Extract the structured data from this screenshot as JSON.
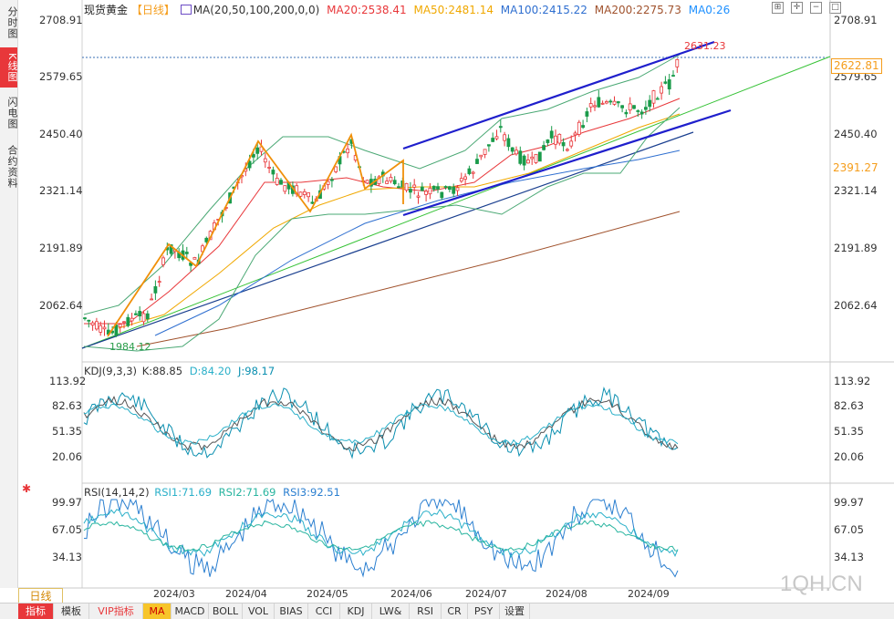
{
  "left_tabs": [
    {
      "label": "分时图",
      "active": false
    },
    {
      "label": "K线图",
      "active": true
    },
    {
      "label": "闪电图",
      "active": false
    },
    {
      "label": "合约资料",
      "active": false
    }
  ],
  "main": {
    "title": "现货黄金",
    "period_tag": "【日线】",
    "ma_params": "MA(20,50,100,200,0,0)",
    "ma20": "MA20:2538.41",
    "ma50": "MA50:2481.14",
    "ma100": "MA100:2415.22",
    "ma200": "MA200:2275.73",
    "ma0": "MA0:26",
    "y_ticks": [
      "2708.91",
      "2579.65",
      "2450.40",
      "2321.14",
      "2191.89",
      "2062.64"
    ],
    "last_price": "2622.81",
    "ref_price": "2391.27",
    "high_label": "2631.23",
    "low_label": "1984.12"
  },
  "kdj": {
    "title": "KDJ(9,3,3)",
    "k": "K:88.85",
    "d": "D:84.20",
    "j": "J:98.17",
    "y_ticks": [
      "113.92",
      "82.63",
      "51.35",
      "20.06"
    ]
  },
  "rsi": {
    "title": "RSI(14,14,2)",
    "rsi1": "RSI1:71.69",
    "rsi2": "RSI2:71.69",
    "rsi3": "RSI3:92.51",
    "y_ticks": [
      "99.97",
      "67.05",
      "34.13"
    ]
  },
  "x_axis": [
    "2024/03",
    "2024/04",
    "2024/05",
    "2024/06",
    "2024/07",
    "2024/08",
    "2024/09"
  ],
  "period_button": "日线",
  "bottom_tabs": [
    "指标",
    "模板",
    "VIP指标",
    "MA",
    "MACD",
    "BOLL",
    "VOL",
    "BIAS",
    "CCI",
    "KDJ",
    "LW&",
    "RSI",
    "CR",
    "PSY",
    "设置"
  ],
  "watermark": "1QH.CN",
  "colors": {
    "ma20": "#e8373a",
    "ma50": "#f0a800",
    "ma100": "#2f6fd0",
    "ma200": "#a0522d",
    "ma0": "#1e90ff",
    "kdj_k": "#555555",
    "kdj_d": "#2bb0c9",
    "kdj_j": "#0a8fb0",
    "rsi1": "#2bb0c9",
    "rsi2": "#2ab5a0",
    "rsi3": "#2b7fd0",
    "up": "#e8373a",
    "down": "#1a9b4a",
    "channel": "#1f1fcc",
    "trend": "#36c236",
    "zigzag": "#f0900a"
  }
}
